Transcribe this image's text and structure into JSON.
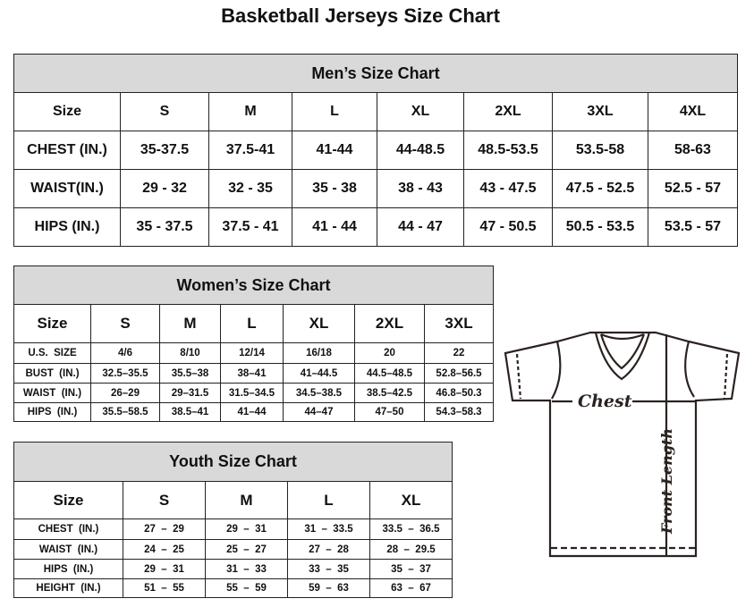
{
  "title": "Basketball Jerseys Size Chart",
  "mens": {
    "heading": "Men’s Size Chart",
    "header": [
      "Size",
      "S",
      "M",
      "L",
      "XL",
      "2XL",
      "3XL",
      "4XL"
    ],
    "rows": [
      [
        "CHEST (IN.)",
        "35-37.5",
        "37.5-41",
        "41-44",
        "44-48.5",
        "48.5-53.5",
        "53.5-58",
        "58-63"
      ],
      [
        "WAIST(IN.)",
        "29 - 32",
        "32 - 35",
        "35 - 38",
        "38 - 43",
        "43 - 47.5",
        "47.5 - 52.5",
        "52.5 - 57"
      ],
      [
        "HIPS (IN.)",
        "35 - 37.5",
        "37.5 - 41",
        "41 - 44",
        "44 - 47",
        "47 - 50.5",
        "50.5 - 53.5",
        "53.5 - 57"
      ]
    ]
  },
  "womens": {
    "heading": "Women’s Size Chart",
    "header": [
      "Size",
      "S",
      "M",
      "L",
      "XL",
      "2XL",
      "3XL"
    ],
    "rows": [
      [
        "U.S.  SIZE",
        "4/6",
        "8/10",
        "12/14",
        "16/18",
        "20",
        "22"
      ],
      [
        "BUST  (IN.)",
        "32.5–35.5",
        "35.5–38",
        "38–41",
        "41–44.5",
        "44.5–48.5",
        "52.8–56.5"
      ],
      [
        "WAIST  (IN.)",
        "26–29",
        "29–31.5",
        "31.5–34.5",
        "34.5–38.5",
        "38.5–42.5",
        "46.8–50.3"
      ],
      [
        "HIPS  (IN.)",
        "35.5–58.5",
        "38.5–41",
        "41–44",
        "44–47",
        "47–50",
        "54.3–58.3"
      ]
    ]
  },
  "youth": {
    "heading": "Youth Size Chart",
    "header": [
      "Size",
      "S",
      "M",
      "L",
      "XL"
    ],
    "rows": [
      [
        "CHEST  (IN.)",
        "27  –  29",
        "29  –  31",
        "31  –  33.5",
        "33.5  –  36.5"
      ],
      [
        "WAIST  (IN.)",
        "24  –  25",
        "25  –  27",
        "27  –  28",
        "28  –  29.5"
      ],
      [
        "HIPS  (IN.)",
        "29  –  31",
        "31  –  33",
        "33  –  35",
        "35  –  37"
      ],
      [
        "HEIGHT  (IN.)",
        "51  –  55",
        "55  –  59",
        "59  –  63",
        "63  –  67"
      ]
    ]
  },
  "diagram": {
    "chest_label": "Chest",
    "length_label": "Front Length"
  }
}
